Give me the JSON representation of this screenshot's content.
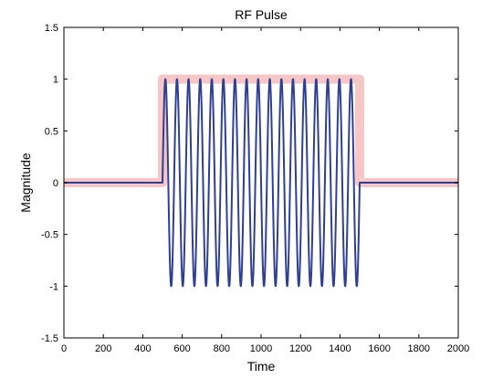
{
  "chart_data": {
    "type": "line",
    "title": "RF Pulse",
    "xlabel": "Time",
    "ylabel": "Magnitude",
    "xlim": [
      0,
      2000
    ],
    "ylim": [
      -1.5,
      1.5
    ],
    "xticks": [
      0,
      200,
      400,
      600,
      800,
      1000,
      1200,
      1400,
      1600,
      1800,
      2000
    ],
    "yticks": [
      -1.5,
      -1,
      -0.5,
      0,
      0.5,
      1,
      1.5
    ],
    "xtick_labels": [
      "0",
      "200",
      "400",
      "600",
      "800",
      "1000",
      "1200",
      "1400",
      "1600",
      "1800",
      "2000"
    ],
    "ytick_labels": [
      "-1.5",
      "-1",
      "-0.5",
      "0",
      "0.5",
      "1",
      "1.5"
    ],
    "grid": false,
    "series": [
      {
        "kind": "envelope",
        "color": "#f7c6c6",
        "x": [
          0,
          500,
          500,
          1500,
          1500,
          2000
        ],
        "y": [
          0,
          0,
          1,
          1,
          0,
          0
        ]
      },
      {
        "kind": "oscillation",
        "color": "#2e3f94",
        "pulse_start": 500,
        "pulse_end": 1500,
        "peak_count": 17,
        "trough_count": 17,
        "amplitude": 1,
        "baseline": 0
      }
    ]
  }
}
